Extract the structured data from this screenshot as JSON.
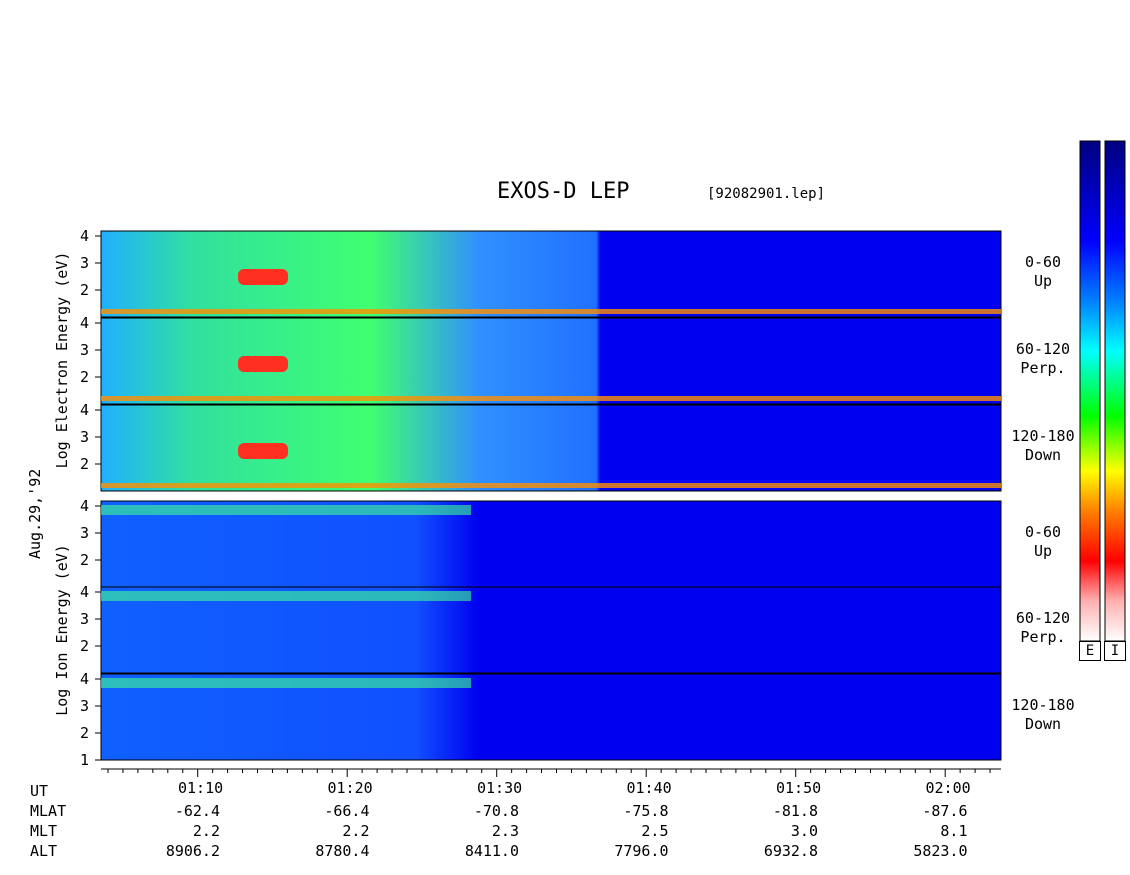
{
  "title": "EXOS-D LEP",
  "file": "[92082901.lep]",
  "date_label": "Aug.29,'92",
  "colorbar_labels": [
    "E",
    "I"
  ],
  "colors": {
    "scale": [
      "#ffffff",
      "#ffb0b0",
      "#ff0000",
      "#ff8000",
      "#ffff00",
      "#00ff00",
      "#00ffff",
      "#0080ff",
      "#0000ff",
      "#000080"
    ]
  },
  "chart_data": {
    "type": "heatmap",
    "x_ticks": [
      "01:10",
      "01:20",
      "01:30",
      "01:40",
      "01:50",
      "02:00"
    ],
    "y_ticks": [
      "4",
      "3",
      "2"
    ],
    "y_ticks_low": [
      "4",
      "3",
      "2",
      "1"
    ],
    "groups": [
      {
        "name": "electron",
        "ylabel": [
          "Log",
          "Electron",
          "Energy",
          "(eV)"
        ],
        "panels": [
          {
            "label": [
              "0-60",
              "Up"
            ]
          },
          {
            "label": [
              "60-120",
              "Perp."
            ]
          },
          {
            "label": [
              "120-180",
              "Down"
            ]
          }
        ]
      },
      {
        "name": "ion",
        "ylabel": [
          "Log",
          "Ion",
          "Energy",
          "(eV)"
        ],
        "panels": [
          {
            "label": [
              "0-60",
              "Up"
            ]
          },
          {
            "label": [
              "60-120",
              "Perp."
            ]
          },
          {
            "label": [
              "120-180",
              "Down"
            ]
          }
        ]
      }
    ],
    "ephemeris": {
      "rows": [
        "UT",
        "MLAT",
        "MLT",
        "ALT"
      ],
      "columns": [
        {
          "ut": "01:10",
          "mlat": "-62.4",
          "mlt": "2.2",
          "alt": "8906.2"
        },
        {
          "ut": "01:20",
          "mlat": "-66.4",
          "mlt": "2.2",
          "alt": "8780.4"
        },
        {
          "ut": "01:30",
          "mlat": "-70.8",
          "mlt": "2.3",
          "alt": "8411.0"
        },
        {
          "ut": "01:40",
          "mlat": "-75.8",
          "mlt": "2.5",
          "alt": "7796.0"
        },
        {
          "ut": "01:50",
          "mlat": "-81.8",
          "mlt": "3.0",
          "alt": "6932.8"
        },
        {
          "ut": "02:00",
          "mlat": "-87.6",
          "mlt": "8.1",
          "alt": "5823.0"
        }
      ]
    }
  }
}
